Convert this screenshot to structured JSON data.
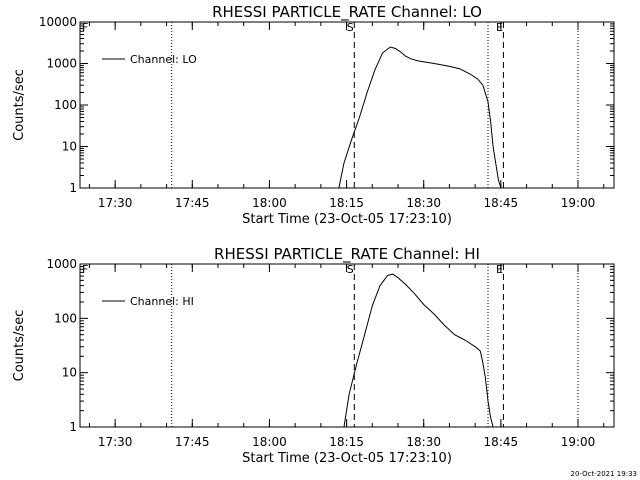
{
  "footer": {
    "timestamp": "20-Oct-2021 19:33"
  },
  "chart_data": [
    {
      "type": "line",
      "title": "RHESSI PARTICLE_RATE Channel: LO",
      "xlabel": "Start Time (23-Oct-05 17:23:10)",
      "ylabel": "Counts/sec",
      "yscale": "log",
      "xlim": [
        "17:23:10",
        "19:07:00"
      ],
      "ylim": [
        1,
        10000
      ],
      "x_ticks": [
        "17:30",
        "17:45",
        "18:00",
        "18:15",
        "18:30",
        "18:45",
        "19:00"
      ],
      "y_ticks": [
        "1",
        "10",
        "100",
        "1000",
        "10000"
      ],
      "legend": {
        "position": "top-left",
        "label": "Channel: LO"
      },
      "markers": {
        "dotted": [
          "17:41:00",
          "18:42:30",
          "19:00:00"
        ],
        "dashed": [
          {
            "x": "18:16:30",
            "label": "S"
          },
          {
            "x": "18:45:30",
            "label": "E"
          }
        ],
        "corner_label": "F"
      },
      "series": [
        {
          "name": "Channel: LO",
          "x": [
            "18:13:30",
            "18:14:30",
            "18:16:00",
            "18:17:30",
            "18:19:00",
            "18:20:30",
            "18:22:00",
            "18:23:30",
            "18:24:30",
            "18:25:30",
            "18:26:30",
            "18:27:30",
            "18:29:00",
            "18:31:00",
            "18:33:00",
            "18:35:00",
            "18:37:00",
            "18:39:00",
            "18:40:30",
            "18:41:30",
            "18:42:30",
            "18:43:00",
            "18:43:30",
            "18:44:00",
            "18:44:30",
            "18:45:00"
          ],
          "y": [
            1,
            4,
            15,
            50,
            200,
            700,
            1800,
            2500,
            2300,
            1900,
            1500,
            1300,
            1150,
            1050,
            950,
            850,
            750,
            560,
            420,
            300,
            120,
            40,
            10,
            4,
            1.6,
            1
          ]
        }
      ]
    },
    {
      "type": "line",
      "title": "RHESSI PARTICLE_RATE Channel: HI",
      "xlabel": "Start Time (23-Oct-05 17:23:10)",
      "ylabel": "Counts/sec",
      "yscale": "log",
      "xlim": [
        "17:23:10",
        "19:07:00"
      ],
      "ylim": [
        1,
        1000
      ],
      "x_ticks": [
        "17:30",
        "17:45",
        "18:00",
        "18:15",
        "18:30",
        "18:45",
        "19:00"
      ],
      "y_ticks": [
        "1",
        "10",
        "100",
        "1000"
      ],
      "legend": {
        "position": "top-left",
        "label": "Channel: HI"
      },
      "markers": {
        "dotted": [
          "17:41:00",
          "18:42:30",
          "19:00:00"
        ],
        "dashed": [
          {
            "x": "18:16:30",
            "label": "S"
          },
          {
            "x": "18:45:30",
            "label": "E"
          }
        ],
        "corner_label": "F"
      },
      "series": [
        {
          "name": "Channel: HI",
          "x": [
            "18:14:30",
            "18:15:30",
            "18:17:00",
            "18:18:30",
            "18:20:00",
            "18:21:30",
            "18:23:00",
            "18:24:00",
            "18:25:00",
            "18:26:30",
            "18:28:00",
            "18:30:00",
            "18:32:00",
            "18:34:00",
            "18:36:00",
            "18:38:00",
            "18:40:00",
            "18:41:00",
            "18:41:30",
            "18:42:00",
            "18:42:30",
            "18:43:00",
            "18:43:30"
          ],
          "y": [
            1,
            4,
            15,
            50,
            170,
            400,
            620,
            650,
            560,
            420,
            300,
            180,
            120,
            75,
            50,
            40,
            30,
            25,
            15,
            8,
            3,
            1.5,
            1
          ]
        }
      ]
    }
  ]
}
